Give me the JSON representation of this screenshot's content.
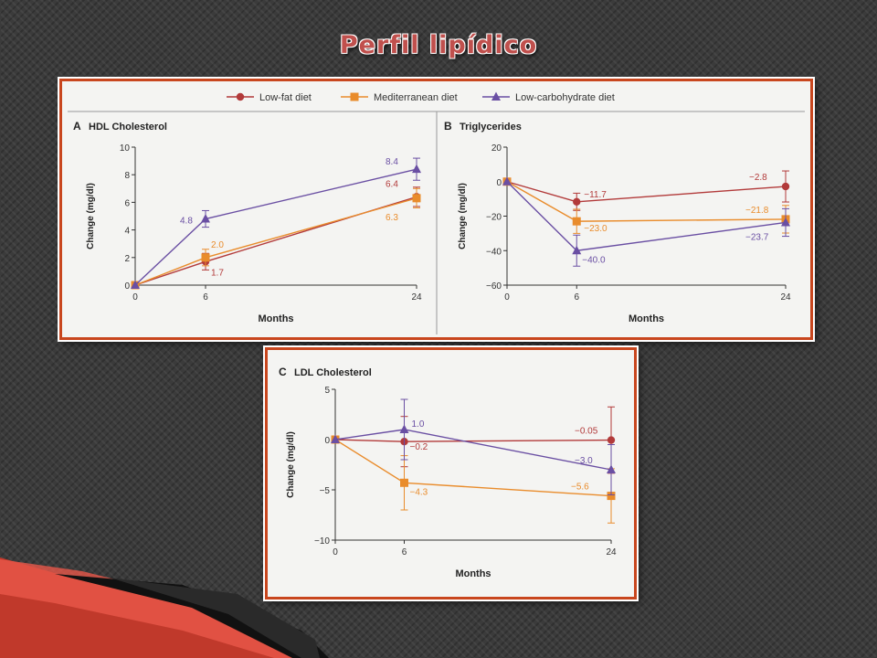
{
  "slide": {
    "title": "Perfil lipídico"
  },
  "legend": [
    {
      "label": "Low-fat diet",
      "color": "#b23a3a",
      "marker": "circle"
    },
    {
      "label": "Mediterranean diet",
      "color": "#e98c2c",
      "marker": "square"
    },
    {
      "label": "Low-carbohydrate diet",
      "color": "#6a4fa3",
      "marker": "triangle"
    }
  ],
  "chart_data": [
    {
      "type": "line",
      "panel_letter": "A",
      "title": "HDL Cholesterol",
      "xlabel": "Months",
      "ylabel": "Change (mg/dl)",
      "x": [
        0,
        6,
        24
      ],
      "xticks": [
        "0",
        "6",
        "24"
      ],
      "yticks": [
        0,
        2,
        4,
        6,
        8,
        10
      ],
      "ylim": [
        0,
        10
      ],
      "series": [
        {
          "name": "Low-fat diet",
          "color": "#b23a3a",
          "marker": "circle",
          "values": [
            0,
            1.7,
            6.4
          ],
          "err": [
            0,
            0.6,
            0.7
          ],
          "labels": [
            "",
            "1.7",
            "6.4"
          ]
        },
        {
          "name": "Mediterranean diet",
          "color": "#e98c2c",
          "marker": "square",
          "values": [
            0,
            2.0,
            6.3
          ],
          "err": [
            0,
            0.6,
            0.7
          ],
          "labels": [
            "",
            "2.0",
            "6.3"
          ]
        },
        {
          "name": "Low-carbohydrate diet",
          "color": "#6a4fa3",
          "marker": "triangle",
          "values": [
            0,
            4.8,
            8.4
          ],
          "err": [
            0,
            0.6,
            0.8
          ],
          "labels": [
            "",
            "4.8",
            "8.4"
          ]
        }
      ]
    },
    {
      "type": "line",
      "panel_letter": "B",
      "title": "Triglycerides",
      "xlabel": "Months",
      "ylabel": "Change (mg/dl)",
      "x": [
        0,
        6,
        24
      ],
      "xticks": [
        "0",
        "6",
        "24"
      ],
      "yticks": [
        -60,
        -40,
        -20,
        0,
        20
      ],
      "ylim": [
        -60,
        20
      ],
      "series": [
        {
          "name": "Low-fat diet",
          "color": "#b23a3a",
          "marker": "circle",
          "values": [
            0,
            -11.7,
            -2.8
          ],
          "err": [
            0,
            5,
            9
          ],
          "labels": [
            "",
            "−11.7",
            "−2.8"
          ]
        },
        {
          "name": "Mediterranean diet",
          "color": "#e98c2c",
          "marker": "square",
          "values": [
            0,
            -23.0,
            -21.8
          ],
          "err": [
            0,
            7,
            8
          ],
          "labels": [
            "",
            "−23.0",
            "−21.8"
          ]
        },
        {
          "name": "Low-carbohydrate diet",
          "color": "#6a4fa3",
          "marker": "triangle",
          "values": [
            0,
            -40.0,
            -23.7
          ],
          "err": [
            0,
            9,
            8
          ],
          "labels": [
            "",
            "−40.0",
            "−23.7"
          ]
        }
      ]
    },
    {
      "type": "line",
      "panel_letter": "C",
      "title": "LDL Cholesterol",
      "xlabel": "Months",
      "ylabel": "Change (mg/dl)",
      "x": [
        0,
        6,
        24
      ],
      "xticks": [
        "0",
        "6",
        "24"
      ],
      "yticks": [
        -10,
        -5,
        0,
        5
      ],
      "ylim": [
        -10,
        5
      ],
      "series": [
        {
          "name": "Low-fat diet",
          "color": "#b23a3a",
          "marker": "circle",
          "values": [
            0,
            -0.2,
            -0.05
          ],
          "err": [
            0,
            2.5,
            3.3
          ],
          "labels": [
            "",
            "−0.2",
            "−0.05"
          ]
        },
        {
          "name": "Mediterranean diet",
          "color": "#e98c2c",
          "marker": "square",
          "values": [
            0,
            -4.3,
            -5.6
          ],
          "err": [
            0,
            2.7,
            2.7
          ],
          "labels": [
            "",
            "−4.3",
            "−5.6"
          ]
        },
        {
          "name": "Low-carbohydrate diet",
          "color": "#6a4fa3",
          "marker": "triangle",
          "values": [
            0,
            1.0,
            -3.0
          ],
          "err": [
            0,
            3.0,
            2.5
          ],
          "labels": [
            "",
            "1.0",
            "−3.0"
          ]
        }
      ]
    }
  ]
}
